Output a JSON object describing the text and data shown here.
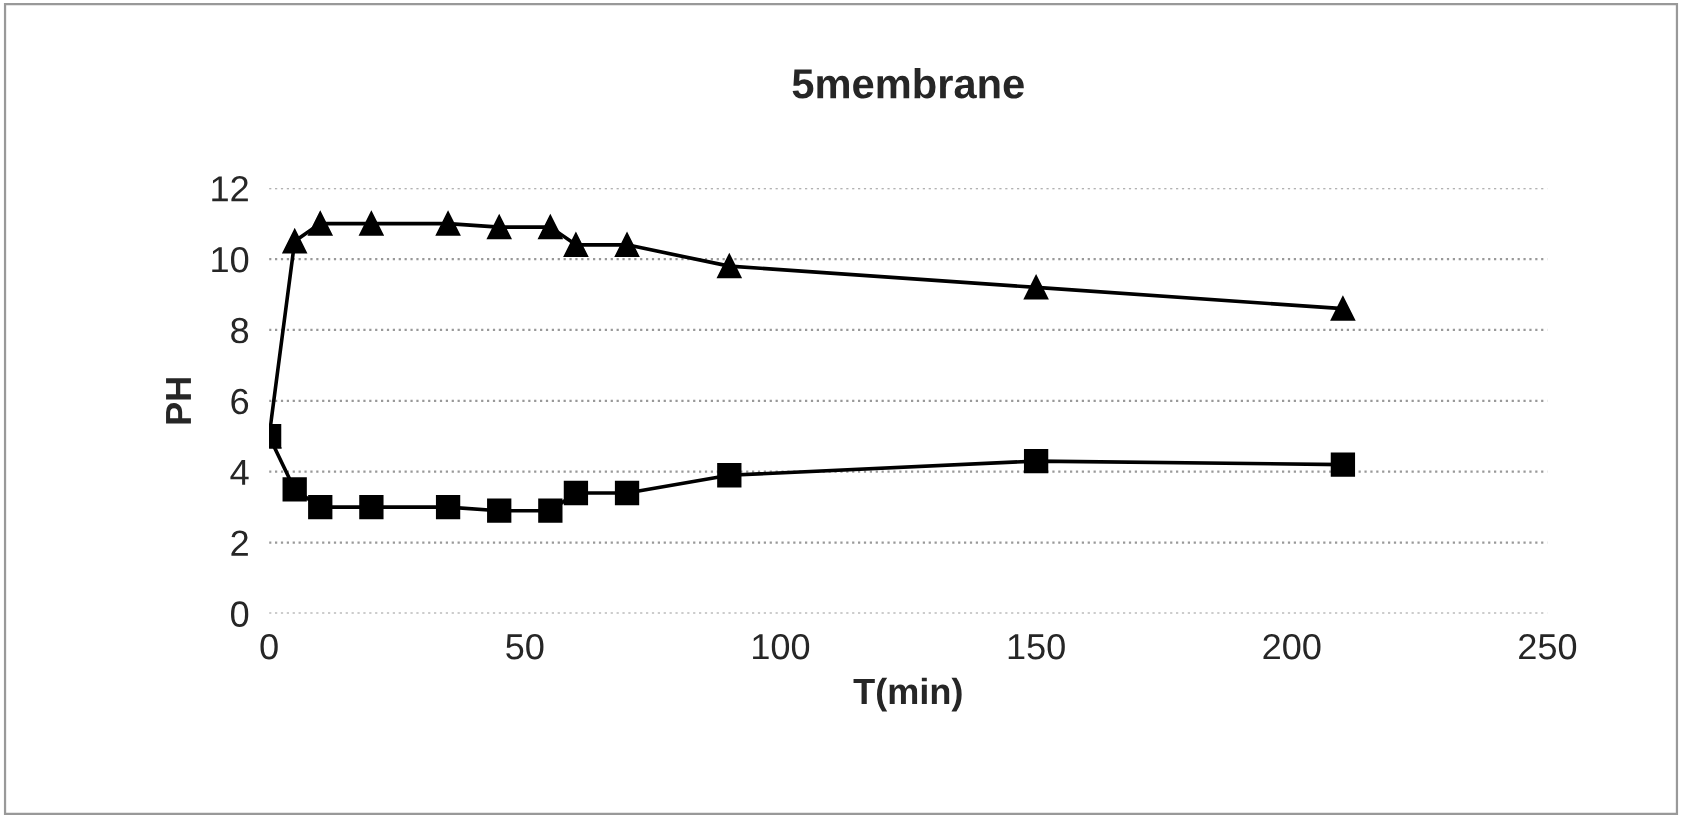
{
  "chart_data": {
    "type": "line",
    "title": "5membrane",
    "xlabel": "T(min)",
    "ylabel": "PH",
    "xlim": [
      0,
      250
    ],
    "xticks": [
      0,
      50,
      100,
      150,
      200,
      250
    ],
    "ylim": [
      0,
      12
    ],
    "yticks": [
      0,
      2,
      4,
      6,
      8,
      10,
      12
    ],
    "grid": "y",
    "line_style": "solid",
    "series": [
      {
        "color": "#000000",
        "marker": "triangle",
        "x": [
          0,
          5,
          10,
          20,
          35,
          45,
          55,
          60,
          70,
          90,
          150,
          210
        ],
        "values": [
          5,
          10.5,
          11,
          11,
          11,
          10.9,
          10.9,
          10.4,
          10.4,
          9.8,
          9.2,
          8.6
        ]
      },
      {
        "color": "#000000",
        "marker": "square",
        "x": [
          0,
          5,
          10,
          20,
          35,
          45,
          55,
          60,
          70,
          90,
          150,
          210
        ],
        "values": [
          5,
          3.5,
          3,
          3,
          3,
          2.9,
          2.9,
          3.4,
          3.4,
          3.9,
          4.3,
          4.2
        ]
      }
    ]
  }
}
